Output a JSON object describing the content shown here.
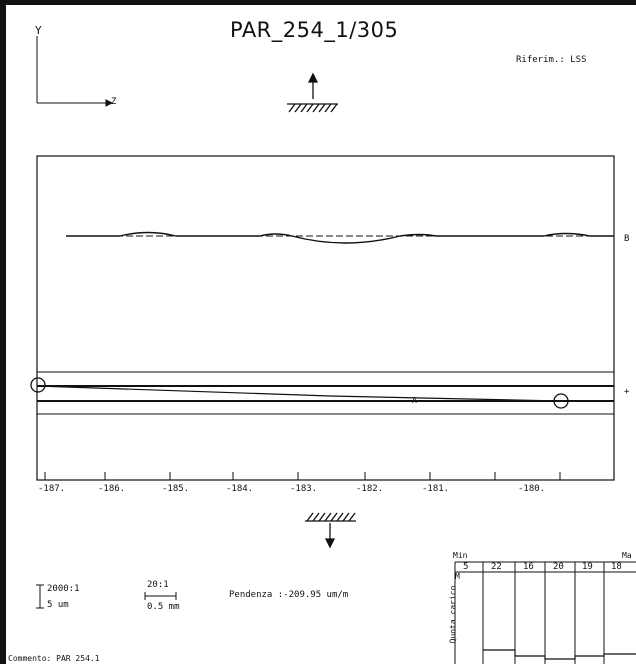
{
  "header": {
    "title": "PAR_254_1/305",
    "reference": "Riferim.: LSS",
    "axis_y_label": "Y",
    "axis_z_label": "Z"
  },
  "plot": {
    "upper_marker": "B",
    "lower_marker": "+",
    "inner_marker": "A",
    "x_ticks": [
      "-187.",
      "-186.",
      "-185.",
      "-184.",
      "-183.",
      "-182.",
      "-181.",
      "-180."
    ]
  },
  "footer": {
    "scale_vertical": "2000:1",
    "scale_vertical_unit": "5 um",
    "scale_horizontal": "20:1",
    "scale_horizontal_unit": "0.5 mm",
    "slope": "Pendenza :-209.95 um/m",
    "comment": "Commento: PAR 254.1",
    "table_min_label": "Min",
    "table_max_label": "Ma",
    "table_side_label": "Quota carico",
    "table_side_unit": "M",
    "table_values": [
      "5",
      "22",
      "16",
      "20",
      "19",
      "18"
    ]
  }
}
